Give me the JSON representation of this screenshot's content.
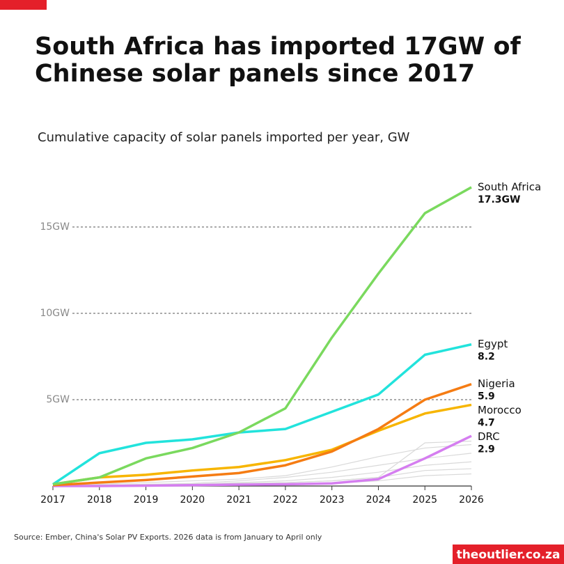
{
  "chart_data": {
    "type": "line",
    "title": "South Africa has imported 17GW of Chinese solar panels since 2017",
    "title_lines": [
      "South Africa has imported 17GW of",
      "Chinese solar panels since 2017"
    ],
    "subtitle": "Cumulative capacity of solar panels imported per year, GW",
    "source": "Source: Ember, China's Solar PV Exports. 2026 data is from January to April only",
    "brand": "theoutlier.co.za",
    "x": [
      2017,
      2018,
      2019,
      2020,
      2021,
      2022,
      2023,
      2024,
      2025,
      2026
    ],
    "xlim": [
      2017,
      2026
    ],
    "xticks": [
      2017,
      2018,
      2019,
      2020,
      2021,
      2022,
      2023,
      2024,
      2025,
      2026
    ],
    "ylim": [
      0,
      18
    ],
    "yticks": [
      {
        "value": 5,
        "label": "5GW"
      },
      {
        "value": 10,
        "label": "10GW"
      },
      {
        "value": 15,
        "label": "15GW"
      }
    ],
    "grid": true,
    "series": [
      {
        "color": "#d9d9d9",
        "values": [
          0,
          0,
          0.05,
          0.1,
          0.15,
          0.2,
          0.3,
          0.5,
          2.5,
          2.6
        ]
      },
      {
        "color": "#d9d9d9",
        "values": [
          0,
          0.1,
          0.2,
          0.3,
          0.4,
          0.6,
          1.1,
          1.7,
          2.2,
          2.4
        ]
      },
      {
        "color": "#d9d9d9",
        "values": [
          0,
          0.05,
          0.1,
          0.15,
          0.3,
          0.5,
          0.8,
          1.2,
          1.6,
          1.9
        ]
      },
      {
        "color": "#d9d9d9",
        "values": [
          0,
          0.05,
          0.1,
          0.1,
          0.2,
          0.3,
          0.5,
          0.8,
          1.2,
          1.4
        ]
      },
      {
        "color": "#d9d9d9",
        "values": [
          0,
          0,
          0.05,
          0.1,
          0.1,
          0.2,
          0.3,
          0.5,
          0.9,
          1.0
        ]
      },
      {
        "color": "#d9d9d9",
        "values": [
          0,
          0,
          0,
          0.05,
          0.05,
          0.1,
          0.15,
          0.3,
          0.6,
          0.7
        ]
      },
      {
        "name": "DRC",
        "color": "#d57ef0",
        "values": [
          0,
          0,
          0.02,
          0.05,
          0.08,
          0.1,
          0.15,
          0.4,
          1.6,
          2.9
        ],
        "value_labels": [
          null,
          null,
          null,
          null,
          null,
          null,
          null,
          null,
          null,
          "2.9"
        ]
      },
      {
        "name": "Morocco",
        "color": "#f7b500",
        "values": [
          0.1,
          0.5,
          0.65,
          0.9,
          1.1,
          1.5,
          2.1,
          3.2,
          4.2,
          4.7
        ],
        "value_labels": [
          null,
          null,
          null,
          null,
          null,
          null,
          null,
          null,
          null,
          "4.7"
        ]
      },
      {
        "name": "Nigeria",
        "color": "#f57c13",
        "values": [
          0.05,
          0.2,
          0.35,
          0.55,
          0.75,
          1.2,
          2.0,
          3.3,
          5.0,
          5.9
        ],
        "value_labels": [
          null,
          null,
          null,
          null,
          null,
          null,
          null,
          null,
          null,
          "5.9"
        ]
      },
      {
        "name": "Egypt",
        "color": "#22e3dc",
        "values": [
          0.1,
          1.9,
          2.5,
          2.7,
          3.1,
          3.3,
          4.3,
          5.3,
          7.6,
          8.2
        ],
        "value_labels": [
          null,
          null,
          null,
          null,
          null,
          null,
          null,
          null,
          null,
          "8.2"
        ]
      },
      {
        "name": "South Africa",
        "color": "#7ad95e",
        "values": [
          0.1,
          0.5,
          1.6,
          2.2,
          3.1,
          4.5,
          8.6,
          12.3,
          15.8,
          17.3
        ],
        "value_labels": [
          null,
          null,
          null,
          null,
          null,
          null,
          null,
          null,
          null,
          "17.3GW"
        ]
      }
    ]
  }
}
